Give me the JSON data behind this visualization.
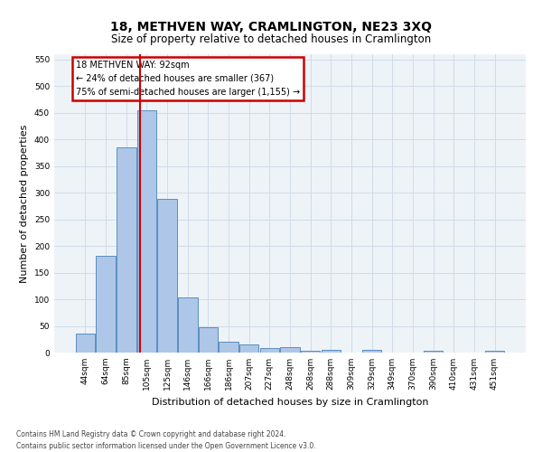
{
  "title": "18, METHVEN WAY, CRAMLINGTON, NE23 3XQ",
  "subtitle": "Size of property relative to detached houses in Cramlington",
  "xlabel": "Distribution of detached houses by size in Cramlington",
  "ylabel": "Number of detached properties",
  "categories": [
    "44sqm",
    "64sqm",
    "85sqm",
    "105sqm",
    "125sqm",
    "146sqm",
    "166sqm",
    "186sqm",
    "207sqm",
    "227sqm",
    "248sqm",
    "268sqm",
    "288sqm",
    "309sqm",
    "329sqm",
    "349sqm",
    "370sqm",
    "390sqm",
    "410sqm",
    "431sqm",
    "451sqm"
  ],
  "values": [
    35,
    182,
    385,
    455,
    288,
    103,
    47,
    20,
    15,
    8,
    10,
    4,
    5,
    0,
    5,
    0,
    0,
    3,
    0,
    0,
    4
  ],
  "bar_color": "#aec6e8",
  "bar_edge_color": "#5a8fc0",
  "annotation_title": "18 METHVEN WAY: 92sqm",
  "annotation_line1": "← 24% of detached houses are smaller (367)",
  "annotation_line2": "75% of semi-detached houses are larger (1,155) →",
  "annotation_box_color": "#ffffff",
  "annotation_box_edge": "#cc0000",
  "grid_color": "#d0dce8",
  "background_color": "#eef3f8",
  "ylim": [
    0,
    560
  ],
  "yticks": [
    0,
    50,
    100,
    150,
    200,
    250,
    300,
    350,
    400,
    450,
    500,
    550
  ],
  "footer_line1": "Contains HM Land Registry data © Crown copyright and database right 2024.",
  "footer_line2": "Contains public sector information licensed under the Open Government Licence v3.0.",
  "title_fontsize": 10,
  "subtitle_fontsize": 8.5,
  "tick_fontsize": 6.5,
  "ylabel_fontsize": 8,
  "xlabel_fontsize": 8,
  "red_line_x": 2.65
}
